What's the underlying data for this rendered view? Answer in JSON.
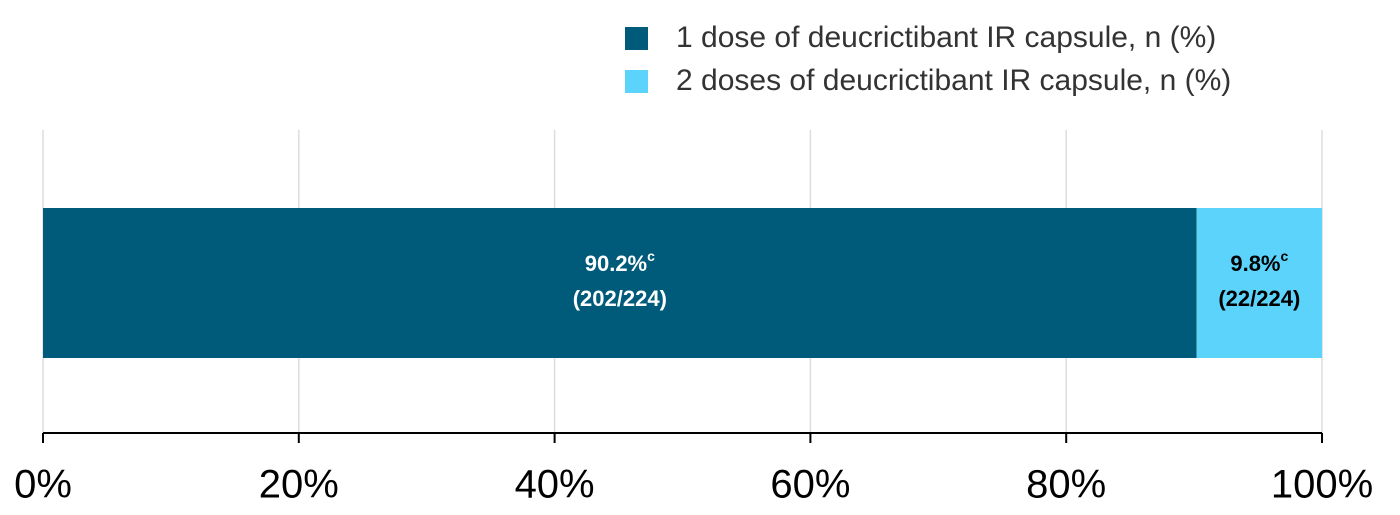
{
  "chart_data": {
    "type": "stacked-bar-horizontal",
    "categories": [
      null
    ],
    "series": [
      {
        "name": "1 dose of deucrictibant IR capsule, n (%)",
        "color": "#005a7a",
        "values": [
          90.2
        ],
        "value_labels": [
          "90.2%"
        ],
        "value_notes": [
          "c"
        ],
        "value_counts": [
          "(202/224)"
        ]
      },
      {
        "name": "2 doses of deucrictibant IR capsule, n (%)",
        "color": "#5cd3fb",
        "values": [
          9.8
        ],
        "value_labels": [
          "9.8%"
        ],
        "value_notes": [
          "c"
        ],
        "value_counts": [
          "(22/224)"
        ]
      }
    ],
    "xlim": [
      0,
      100
    ],
    "xticks": [
      {
        "value": 0,
        "label": "0%"
      },
      {
        "value": 20,
        "label": "20%"
      },
      {
        "value": 40,
        "label": "40%"
      },
      {
        "value": 60,
        "label": "60%"
      },
      {
        "value": 80,
        "label": "80%"
      },
      {
        "value": 100,
        "label": "100%"
      }
    ],
    "grid": true,
    "legend": "top-right"
  }
}
